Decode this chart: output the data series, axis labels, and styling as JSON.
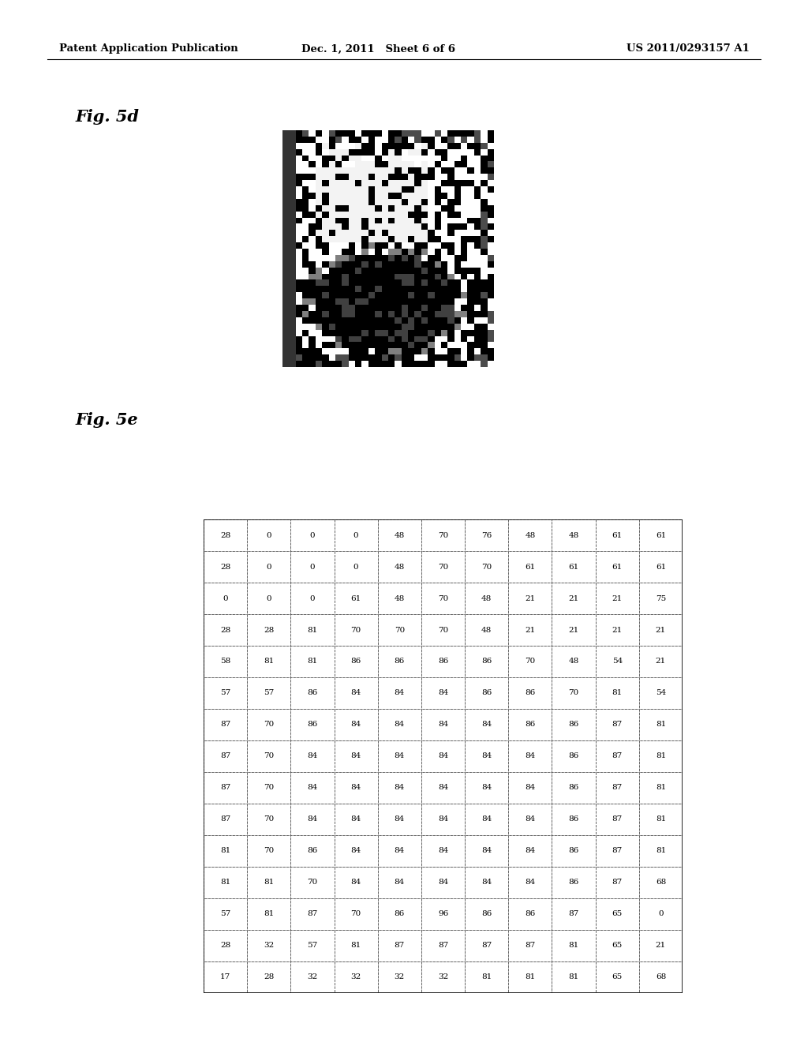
{
  "header_left": "Patent Application Publication",
  "header_center": "Dec. 1, 2011   Sheet 6 of 6",
  "header_right": "US 2011/0293157 A1",
  "fig5d_label": "Fig. 5d",
  "fig5e_label": "Fig. 5e",
  "grid_data": [
    [
      28,
      0,
      0,
      0,
      48,
      70,
      76,
      48,
      48,
      61,
      61
    ],
    [
      28,
      0,
      0,
      0,
      48,
      70,
      70,
      61,
      61,
      61,
      61
    ],
    [
      0,
      0,
      0,
      61,
      48,
      70,
      48,
      21,
      21,
      21,
      75
    ],
    [
      28,
      28,
      81,
      70,
      70,
      70,
      48,
      21,
      21,
      21,
      21
    ],
    [
      58,
      81,
      81,
      86,
      86,
      86,
      86,
      70,
      48,
      54,
      21
    ],
    [
      57,
      57,
      86,
      84,
      84,
      84,
      86,
      86,
      70,
      81,
      54
    ],
    [
      87,
      70,
      86,
      84,
      84,
      84,
      84,
      86,
      86,
      87,
      81
    ],
    [
      87,
      70,
      84,
      84,
      84,
      84,
      84,
      84,
      86,
      87,
      81
    ],
    [
      87,
      70,
      84,
      84,
      84,
      84,
      84,
      84,
      86,
      87,
      81
    ],
    [
      87,
      70,
      84,
      84,
      84,
      84,
      84,
      84,
      86,
      87,
      81
    ],
    [
      81,
      70,
      86,
      84,
      84,
      84,
      84,
      84,
      86,
      87,
      81
    ],
    [
      81,
      81,
      70,
      84,
      84,
      84,
      84,
      84,
      86,
      87,
      68
    ],
    [
      57,
      81,
      87,
      70,
      86,
      96,
      86,
      86,
      87,
      65,
      0
    ],
    [
      28,
      32,
      57,
      81,
      87,
      87,
      87,
      87,
      81,
      65,
      21
    ],
    [
      17,
      28,
      32,
      32,
      32,
      32,
      81,
      81,
      81,
      65,
      68
    ]
  ],
  "bg_color": "#ffffff",
  "header_font_size": 9.5,
  "fig_label_font_size": 15,
  "grid_font_size": 7.5
}
